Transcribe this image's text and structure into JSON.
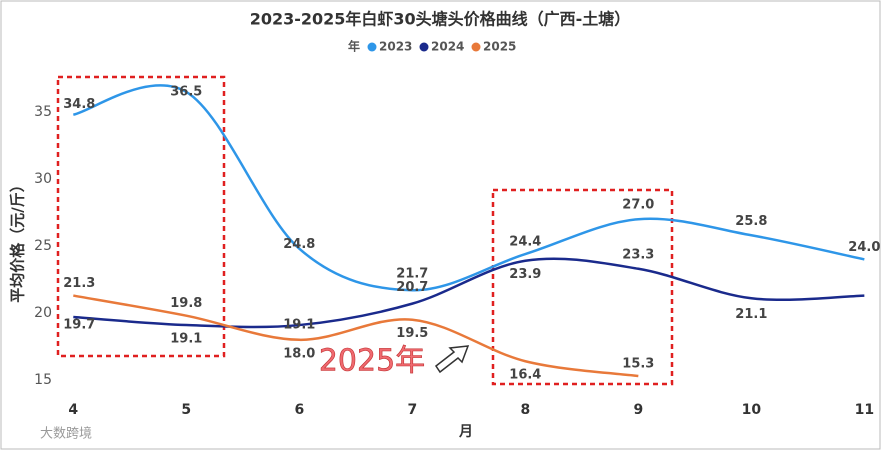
{
  "chart_data": {
    "type": "line",
    "title": "2023-2025年白虾30头塘头价格曲线（广西-土塘）",
    "legend_title": "年",
    "legend": "top",
    "x_label": "月",
    "y_label": "平均价格（元/斤）",
    "x": [
      4,
      5,
      6,
      7,
      8,
      9,
      10,
      11
    ],
    "xlim": [
      3.9,
      11.05
    ],
    "xticks": [
      4,
      5,
      6,
      7,
      8,
      9,
      10,
      11
    ],
    "ylim": [
      14,
      37.5
    ],
    "yticks": [
      15,
      20,
      25,
      30,
      35
    ],
    "grid": false,
    "series": [
      {
        "name": "2023",
        "color": "#2e96e8",
        "values": [
          34.8,
          36.5,
          24.8,
          21.7,
          24.4,
          27.0,
          25.8,
          24.0
        ],
        "value_labels": [
          "34.8",
          "36.5",
          "24.8",
          "21.7",
          "24.4",
          "27.0",
          "25.8",
          "24.0"
        ]
      },
      {
        "name": "2024",
        "color": "#1a2a8c",
        "values": [
          19.7,
          19.1,
          19.1,
          20.7,
          23.9,
          23.3,
          21.1,
          21.3
        ],
        "value_labels": [
          "19.7",
          "19.1",
          "19.1",
          "20.7",
          "23.9",
          "23.3",
          "21.1",
          null
        ]
      },
      {
        "name": "2025",
        "color": "#e8793a",
        "values": [
          21.3,
          19.8,
          18.0,
          19.5,
          16.4,
          15.3,
          null,
          null
        ],
        "value_labels": [
          "21.3",
          "19.8",
          "18.0",
          "19.5",
          "16.4",
          "15.3",
          null,
          null
        ]
      }
    ],
    "annotations": [
      "2025年",
      "大数跨境"
    ]
  }
}
